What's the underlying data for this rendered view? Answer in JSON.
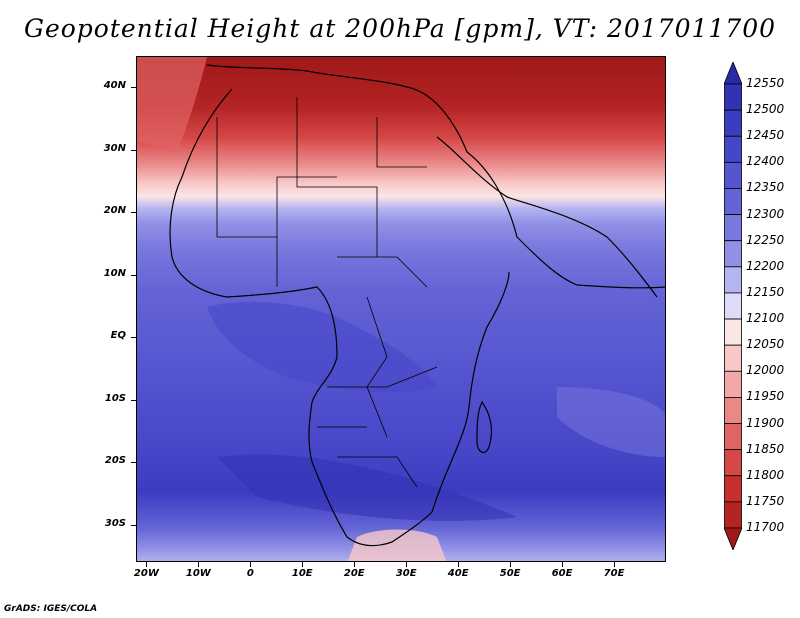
{
  "title": "Geopotential Height at 200hPa [gpm], VT: 2017011700",
  "footer": "GrADS: IGES/COLA",
  "map": {
    "lon_range": [
      -22,
      80
    ],
    "lat_range": [
      -36,
      45
    ],
    "lat_labels": [
      {
        "lat": 40,
        "text": "40N"
      },
      {
        "lat": 30,
        "text": "30N"
      },
      {
        "lat": 20,
        "text": "20N"
      },
      {
        "lat": 10,
        "text": "10N"
      },
      {
        "lat": 0,
        "text": "EQ"
      },
      {
        "lat": -10,
        "text": "10S"
      },
      {
        "lat": -20,
        "text": "20S"
      },
      {
        "lat": -30,
        "text": "30S"
      }
    ],
    "lon_labels": [
      {
        "lon": -20,
        "text": "20W"
      },
      {
        "lon": -10,
        "text": "10W"
      },
      {
        "lon": 0,
        "text": "0"
      },
      {
        "lon": 10,
        "text": "10E"
      },
      {
        "lon": 20,
        "text": "20E"
      },
      {
        "lon": 30,
        "text": "30E"
      },
      {
        "lon": 40,
        "text": "40E"
      },
      {
        "lon": 50,
        "text": "50E"
      },
      {
        "lon": 60,
        "text": "60E"
      },
      {
        "lon": 70,
        "text": "70E"
      }
    ]
  },
  "colorbar": {
    "levels": [
      "12550",
      "12500",
      "12450",
      "12400",
      "12350",
      "12300",
      "12250",
      "12200",
      "12150",
      "12100",
      "12050",
      "12000",
      "11950",
      "11900",
      "11850",
      "11800",
      "11750",
      "11700"
    ],
    "colors": [
      "#2a2aa8",
      "#3232b4",
      "#3c3cc0",
      "#4646c8",
      "#5555d0",
      "#6464d6",
      "#7878de",
      "#9090e6",
      "#b4b4f0",
      "#dcdcfa",
      "#fbe6e6",
      "#f8c8c8",
      "#f2a8a8",
      "#ea8888",
      "#e06464",
      "#d64848",
      "#c83030",
      "#b42424",
      "#a01818"
    ]
  }
}
